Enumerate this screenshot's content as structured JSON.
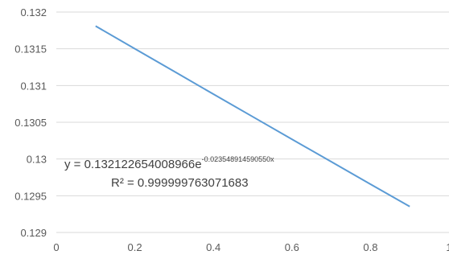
{
  "chart_data": {
    "type": "line",
    "title": "",
    "xlabel": "",
    "ylabel": "",
    "x": [
      0.1,
      0.2,
      0.3,
      0.4,
      0.5,
      0.6,
      0.7,
      0.8,
      0.9
    ],
    "series": [
      {
        "color": "#5b9bd5",
        "values": [
          0.13181,
          0.131501,
          0.131192,
          0.130883,
          0.130576,
          0.130269,
          0.129963,
          0.129657,
          0.129353
        ]
      }
    ],
    "xlim": [
      0,
      1
    ],
    "ylim": [
      0.129,
      0.132
    ],
    "x_ticks": [
      "0",
      "0.2",
      "0.4",
      "0.6",
      "0.8",
      "1"
    ],
    "y_ticks": [
      "0.129",
      "0.1295",
      "0.13",
      "0.1305",
      "0.131",
      "0.1315",
      "0.132"
    ],
    "grid": "horizontal",
    "legend": "none",
    "trendline": {
      "equation_prefix": "y = 0.132122654008966e",
      "equation_exponent": "-0.023548914590550x",
      "r_squared": "R² = 0.999999763071683"
    }
  }
}
